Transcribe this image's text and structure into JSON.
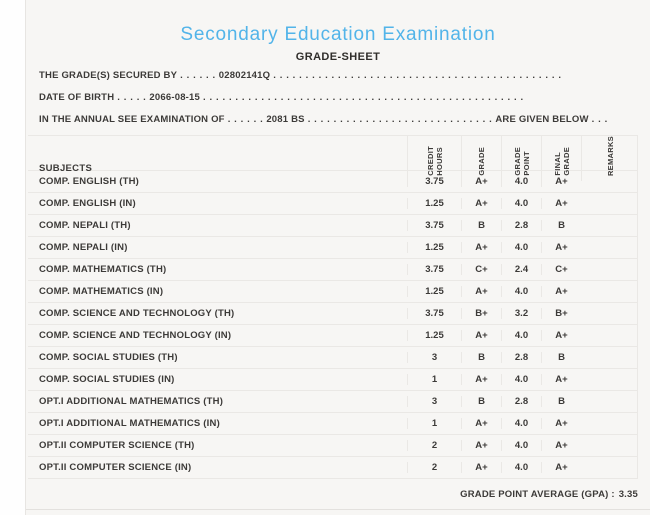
{
  "page": {
    "title": "Secondary Education Examination",
    "subtitle": "GRADE-SHEET"
  },
  "info_lines": [
    {
      "label": "THE GRADE(S) SECURED BY",
      "leader": ". . . . . .",
      "value": "02802141Q",
      "trailer": ". . . . . . . . . . . . . . . . . . . . . . . . . . . . . . . . . . . . . . . . . . . . .",
      "suffix": "",
      "suffix_trailer": ""
    },
    {
      "label": "DATE OF BIRTH",
      "leader": ". . . . .",
      "value": "2066-08-15",
      "trailer": ". . . . . . . . . . . . . . . . . . . . . . . . . . . . . . . . . . . . . . . . . . . . . . . . . .",
      "suffix": "",
      "suffix_trailer": ""
    },
    {
      "label": "IN THE ANNUAL SEE EXAMINATION OF",
      "leader": ". . . . . .",
      "value": "2081 BS",
      "trailer": ". . . . . . . . . . . . . . . . . . . . . . . . . . . . .",
      "suffix": "ARE GIVEN BELOW",
      "suffix_trailer": ". . ."
    }
  ],
  "table": {
    "headers": {
      "subjects": "SUBJECTS",
      "credit_hours": "CREDIT\nHOURS",
      "grade": "GRADE",
      "grade_point": "GRADE\nPOINT",
      "final_grade": "FINAL\nGRADE",
      "remarks": "REMARKS"
    },
    "rows": [
      {
        "subject": "COMP. ENGLISH (TH)",
        "credit_hours": "3.75",
        "grade": "A+",
        "grade_point": "4.0",
        "final_grade": "A+",
        "remarks": ""
      },
      {
        "subject": "COMP. ENGLISH (IN)",
        "credit_hours": "1.25",
        "grade": "A+",
        "grade_point": "4.0",
        "final_grade": "A+",
        "remarks": ""
      },
      {
        "subject": "COMP. NEPALI (TH)",
        "credit_hours": "3.75",
        "grade": "B",
        "grade_point": "2.8",
        "final_grade": "B",
        "remarks": ""
      },
      {
        "subject": "COMP. NEPALI (IN)",
        "credit_hours": "1.25",
        "grade": "A+",
        "grade_point": "4.0",
        "final_grade": "A+",
        "remarks": ""
      },
      {
        "subject": "COMP. MATHEMATICS (TH)",
        "credit_hours": "3.75",
        "grade": "C+",
        "grade_point": "2.4",
        "final_grade": "C+",
        "remarks": ""
      },
      {
        "subject": "COMP. MATHEMATICS (IN)",
        "credit_hours": "1.25",
        "grade": "A+",
        "grade_point": "4.0",
        "final_grade": "A+",
        "remarks": ""
      },
      {
        "subject": "COMP. SCIENCE AND TECHNOLOGY (TH)",
        "credit_hours": "3.75",
        "grade": "B+",
        "grade_point": "3.2",
        "final_grade": "B+",
        "remarks": ""
      },
      {
        "subject": "COMP. SCIENCE AND TECHNOLOGY (IN)",
        "credit_hours": "1.25",
        "grade": "A+",
        "grade_point": "4.0",
        "final_grade": "A+",
        "remarks": ""
      },
      {
        "subject": "COMP. SOCIAL STUDIES (TH)",
        "credit_hours": "3",
        "grade": "B",
        "grade_point": "2.8",
        "final_grade": "B",
        "remarks": ""
      },
      {
        "subject": "COMP. SOCIAL STUDIES (IN)",
        "credit_hours": "1",
        "grade": "A+",
        "grade_point": "4.0",
        "final_grade": "A+",
        "remarks": ""
      },
      {
        "subject": "OPT.I ADDITIONAL MATHEMATICS (TH)",
        "credit_hours": "3",
        "grade": "B",
        "grade_point": "2.8",
        "final_grade": "B",
        "remarks": ""
      },
      {
        "subject": "OPT.I ADDITIONAL MATHEMATICS (IN)",
        "credit_hours": "1",
        "grade": "A+",
        "grade_point": "4.0",
        "final_grade": "A+",
        "remarks": ""
      },
      {
        "subject": "OPT.II COMPUTER SCIENCE (TH)",
        "credit_hours": "2",
        "grade": "A+",
        "grade_point": "4.0",
        "final_grade": "A+",
        "remarks": ""
      },
      {
        "subject": "OPT.II COMPUTER SCIENCE (IN)",
        "credit_hours": "2",
        "grade": "A+",
        "grade_point": "4.0",
        "final_grade": "A+",
        "remarks": ""
      }
    ]
  },
  "footer": {
    "gpa_label": "GRADE POINT AVERAGE (GPA) :",
    "gpa_value": "3.35"
  },
  "colors": {
    "title_blue": "#52b4e9",
    "text_dark": "#3c3a38",
    "page_background": "#f7f6f4",
    "table_border": "#eae8e5",
    "left_strip": "#fefefe"
  }
}
